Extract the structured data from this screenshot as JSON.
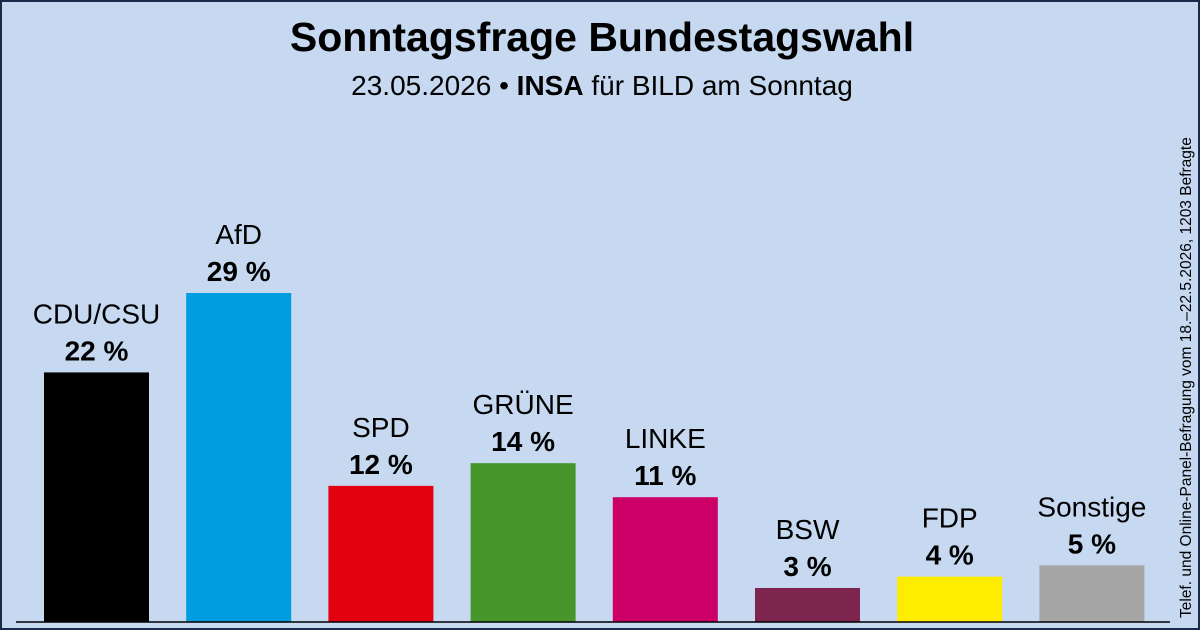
{
  "header": {
    "title": "Sonntagsfrage Bundestagswahl",
    "date": "23.05.2026",
    "separator": "•",
    "institute": "INSA",
    "client": "für BILD am Sonntag"
  },
  "side_note": "Telef. und Online-Panel-Befragung vom 18.–22.5.2026, 1203 Befragte",
  "chart_data": {
    "type": "bar",
    "title": "Sonntagsfrage Bundestagswahl",
    "categories": [
      "CDU/CSU",
      "AfD",
      "SPD",
      "GRÜNE",
      "LINKE",
      "BSW",
      "FDP",
      "Sonstige"
    ],
    "values": [
      22,
      29,
      12,
      14,
      11,
      3,
      4,
      5
    ],
    "value_labels": [
      "22 %",
      "29 %",
      "12 %",
      "14 %",
      "11 %",
      "3 %",
      "4 %",
      "5 %"
    ],
    "unit": "%",
    "colors": [
      "#000000",
      "#009ee0",
      "#e3000f",
      "#46962b",
      "#cc0066",
      "#7d254f",
      "#ffed00",
      "#a6a6a6"
    ],
    "ylim": [
      0,
      29
    ],
    "grid": false,
    "legend": "none"
  }
}
